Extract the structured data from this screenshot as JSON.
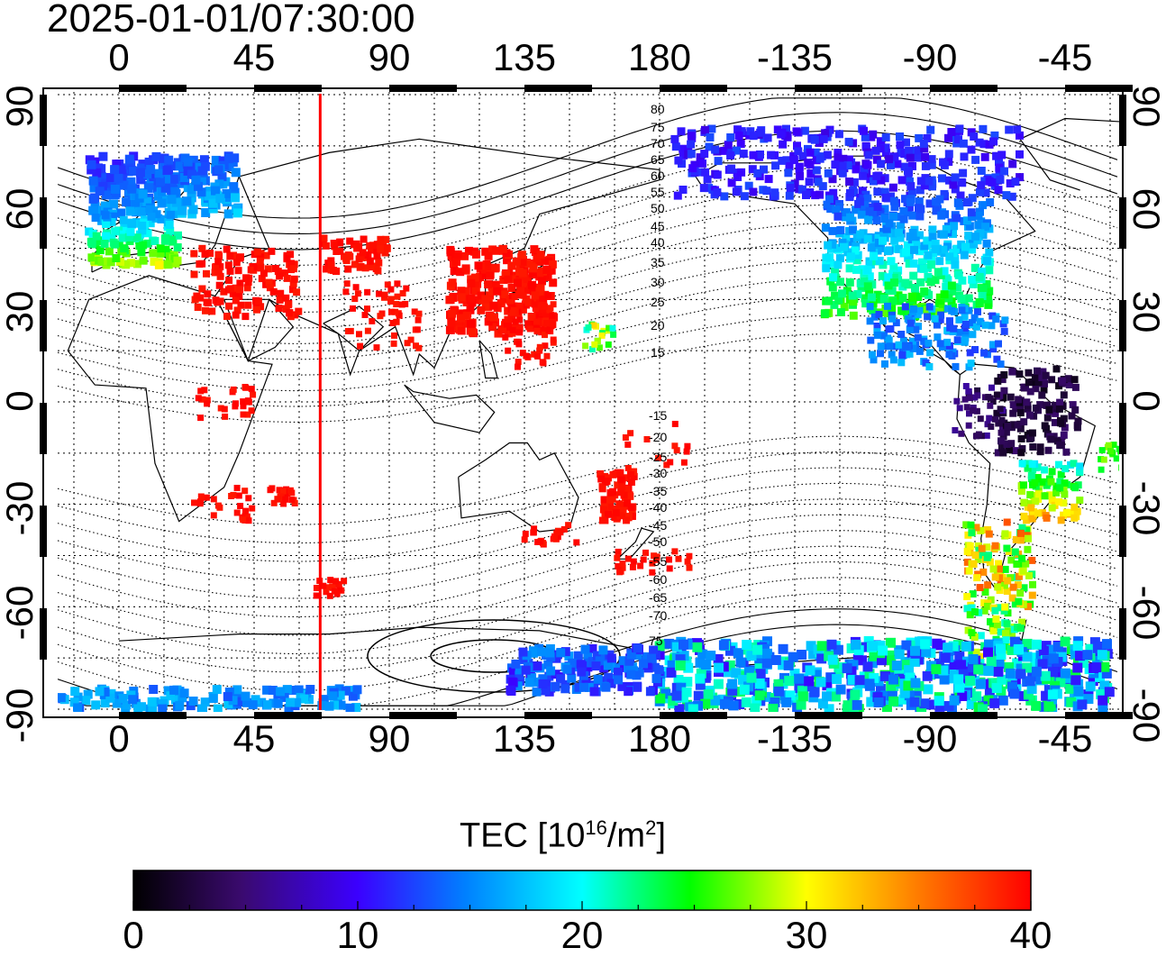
{
  "title": "2025-01-01/07:30:00",
  "map": {
    "lon_labels_top": [
      "0",
      "45",
      "90",
      "135",
      "180",
      "-135",
      "-90",
      "-45"
    ],
    "lon_labels_bottom": [
      "0",
      "45",
      "90",
      "135",
      "180",
      "-135",
      "-90",
      "-45"
    ],
    "lat_labels_left": [
      "90",
      "60",
      "30",
      "0",
      "-30",
      "-60",
      "-90"
    ],
    "lat_labels_right": [
      "90",
      "60",
      "30",
      "0",
      "-30",
      "-60",
      "-90"
    ],
    "magnetic_contour_labels_north": [
      "80",
      "75",
      "70",
      "65",
      "60",
      "55",
      "50",
      "45",
      "40",
      "35",
      "30",
      "25",
      "20",
      "15"
    ],
    "magnetic_contour_labels_south": [
      "-15",
      "-20",
      "-25",
      "-30",
      "-35",
      "-40",
      "-45",
      "-50",
      "-55",
      "-60",
      "-65",
      "-70",
      "75"
    ],
    "marker_line_longitude": 67,
    "marker_line_color": "#ff0000"
  },
  "colorbar": {
    "title_main": "TEC  [10",
    "title_exp1": "16",
    "title_mid": "/m",
    "title_exp2": "2",
    "title_end": "]",
    "min": 0,
    "max": 40,
    "tick_labels": [
      "0",
      "10",
      "20",
      "30",
      "40"
    ],
    "colormap": [
      "#000000",
      "#3a0a6e",
      "#3b00ff",
      "#0080ff",
      "#00ffff",
      "#00ff00",
      "#ffff00",
      "#ff8000",
      "#ff0000"
    ]
  }
}
